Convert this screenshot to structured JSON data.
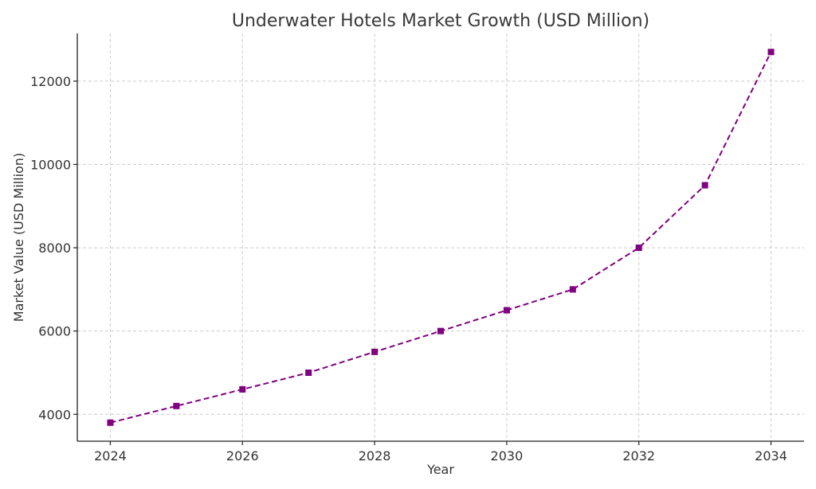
{
  "chart_data": {
    "type": "line",
    "title": "Underwater Hotels Market Growth (USD Million)",
    "xlabel": "Year",
    "ylabel": "Market Value (USD Million)",
    "x": [
      2024,
      2025,
      2026,
      2027,
      2028,
      2029,
      2030,
      2031,
      2032,
      2033,
      2034
    ],
    "series": [
      {
        "values": [
          3800,
          4200,
          4600,
          5000,
          5500,
          6000,
          6500,
          7000,
          8000,
          9500,
          12700
        ],
        "color": "#800080",
        "line_style": "dashed",
        "marker": "square"
      }
    ],
    "xlim": [
      2023.5,
      2034.5
    ],
    "ylim": [
      3355,
      13145
    ],
    "x_ticks": [
      2024,
      2026,
      2028,
      2030,
      2032,
      2034
    ],
    "y_ticks": [
      4000,
      6000,
      8000,
      10000,
      12000
    ],
    "grid": true,
    "legend": "none"
  }
}
